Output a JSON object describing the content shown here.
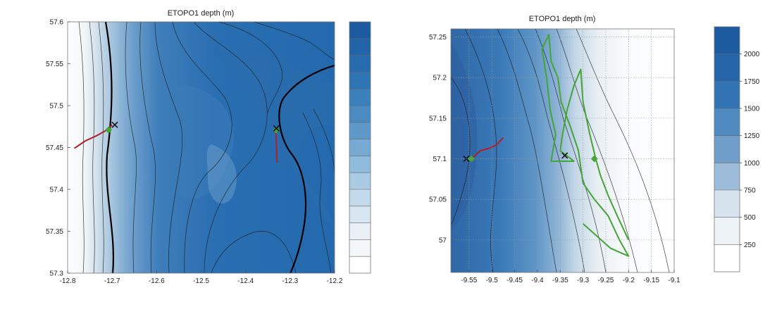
{
  "chart_data": [
    {
      "type": "contour",
      "title": "ETOPO1 depth (m)",
      "xlabel": "",
      "ylabel": "",
      "xlim": [
        -12.8,
        -12.2
      ],
      "ylim": [
        57.3,
        57.6
      ],
      "x_ticks": [
        "-12.8",
        "-12.7",
        "-12.6",
        "-12.5",
        "-12.4",
        "-12.3",
        "-12.2"
      ],
      "y_ticks": [
        "57.3",
        "57.35",
        "57.4",
        "57.45",
        "57.5",
        "57.55",
        "57.6"
      ],
      "colorbar_levels": 15,
      "colorbar_tick_labels": [],
      "highlight_contours": 2,
      "tracks": [
        {
          "color": "#b0202a",
          "points": [
            [
              -12.785,
              57.449
            ],
            [
              -12.76,
              57.458
            ],
            [
              -12.735,
              57.464
            ],
            [
              -12.715,
              57.47
            ],
            [
              -12.7,
              57.477
            ]
          ]
        },
        {
          "color": "#b0202a",
          "points": [
            [
              -12.332,
              57.473
            ],
            [
              -12.331,
              57.455
            ],
            [
              -12.33,
              57.44
            ],
            [
              -12.329,
              57.432
            ]
          ]
        }
      ],
      "markers": [
        {
          "kind": "diamond",
          "color": "#44a536",
          "x": -12.708,
          "y": 57.471
        },
        {
          "kind": "cross",
          "color": "#111111",
          "x": -12.694,
          "y": 57.477
        },
        {
          "kind": "diamond",
          "color": "#44a536",
          "x": -12.331,
          "y": 57.471
        },
        {
          "kind": "cross",
          "color": "#111111",
          "x": -12.331,
          "y": 57.473
        }
      ]
    },
    {
      "type": "contour",
      "title": "ETOPO1 depth (m)",
      "xlabel": "",
      "ylabel": "",
      "xlim": [
        -9.59,
        -9.1
      ],
      "ylim": [
        56.96,
        57.26
      ],
      "x_ticks": [
        "-9.55",
        "-9.5",
        "-9.45",
        "-9.4",
        "-9.35",
        "-9.3",
        "-9.25",
        "-9.2",
        "-9.15",
        "-9.1"
      ],
      "y_ticks": [
        "57",
        "57.05",
        "57.1",
        "57.15",
        "57.2",
        "57.25"
      ],
      "colorbar_levels": 9,
      "colorbar_tick_labels": [
        "2000",
        "1750",
        "1500",
        "1250",
        "1000",
        "750",
        "500",
        "250"
      ],
      "tracks": [
        {
          "color": "#b0202a",
          "points": [
            [
              -9.545,
              57.1
            ],
            [
              -9.525,
              57.11
            ],
            [
              -9.505,
              57.113
            ],
            [
              -9.49,
              57.117
            ],
            [
              -9.475,
              57.126
            ]
          ]
        },
        {
          "color": "#44a536",
          "points": [
            [
              -9.39,
              57.235
            ],
            [
              -9.375,
              57.253
            ],
            [
              -9.37,
              57.22
            ],
            [
              -9.355,
              57.2
            ],
            [
              -9.348,
              57.17
            ],
            [
              -9.328,
              57.14
            ],
            [
              -9.31,
              57.11
            ],
            [
              -9.3,
              57.07
            ],
            [
              -9.275,
              57.05
            ],
            [
              -9.245,
              57.03
            ],
            [
              -9.22,
              57.0
            ],
            [
              -9.2,
              56.98
            ],
            [
              -9.24,
              56.99
            ],
            [
              -9.3,
              57.02
            ]
          ]
        },
        {
          "color": "#44a536",
          "points": [
            [
              -9.39,
              57.235
            ],
            [
              -9.38,
              57.2
            ],
            [
              -9.372,
              57.16
            ],
            [
              -9.36,
              57.13
            ],
            [
              -9.37,
              57.097
            ],
            [
              -9.32,
              57.097
            ],
            [
              -9.35,
              57.11
            ],
            [
              -9.345,
              57.13
            ],
            [
              -9.335,
              57.16
            ],
            [
              -9.32,
              57.19
            ],
            [
              -9.305,
              57.21
            ],
            [
              -9.3,
              57.17
            ],
            [
              -9.285,
              57.13
            ],
            [
              -9.272,
              57.1
            ],
            [
              -9.262,
              57.08
            ],
            [
              -9.245,
              57.055
            ],
            [
              -9.225,
              57.03
            ],
            [
              -9.2,
              57.0
            ]
          ]
        }
      ],
      "markers": [
        {
          "kind": "cross",
          "color": "#111111",
          "x": -9.556,
          "y": 57.1
        },
        {
          "kind": "diamond",
          "color": "#44a536",
          "x": -9.545,
          "y": 57.1
        },
        {
          "kind": "cross",
          "color": "#111111",
          "x": -9.34,
          "y": 57.104
        },
        {
          "kind": "diamond",
          "color": "#44a536",
          "x": -9.275,
          "y": 57.1
        }
      ]
    }
  ]
}
